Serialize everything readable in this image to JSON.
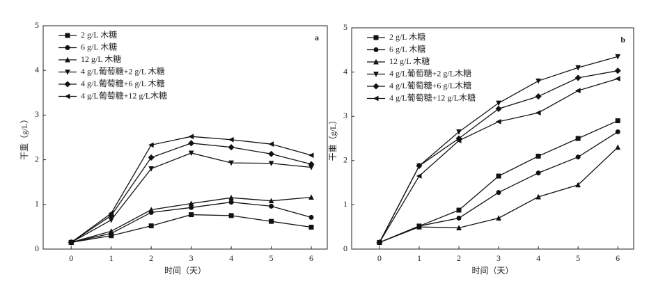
{
  "chart_data": [
    {
      "type": "line",
      "panel_label": "a",
      "x_label": "时间（天）",
      "y_label": "干重（g/L）",
      "x": [
        0,
        1,
        2,
        3,
        4,
        5,
        6
      ],
      "xlim": [
        -0.7,
        6.4
      ],
      "xticks": [
        0,
        1,
        2,
        3,
        4,
        5,
        6
      ],
      "ylim": [
        0,
        5
      ],
      "yticks": [
        0,
        1,
        2,
        3,
        4,
        5
      ],
      "legend": "upper left",
      "series": [
        {
          "name": "2 g/L 木糖",
          "color": "#111111",
          "marker": "square",
          "values": [
            0.15,
            0.3,
            0.52,
            0.77,
            0.75,
            0.62,
            0.49
          ]
        },
        {
          "name": "6 g/L 木糖",
          "color": "#111111",
          "marker": "circle",
          "values": [
            0.15,
            0.35,
            0.82,
            0.93,
            1.05,
            0.96,
            0.71
          ]
        },
        {
          "name": "12 g/L 木糖",
          "color": "#111111",
          "marker": "triangle-up",
          "values": [
            0.15,
            0.4,
            0.88,
            1.02,
            1.15,
            1.08,
            1.16
          ]
        },
        {
          "name": "4 g/L葡萄糖+2 g/L 木糖",
          "color": "#111111",
          "marker": "triangle-down",
          "values": [
            0.15,
            0.65,
            1.8,
            2.15,
            1.93,
            1.92,
            1.83
          ]
        },
        {
          "name": "4 g/L葡萄糖+6 g/L 木糖",
          "color": "#111111",
          "marker": "diamond",
          "values": [
            0.15,
            0.75,
            2.05,
            2.37,
            2.28,
            2.13,
            1.9
          ]
        },
        {
          "name": "4 g/L葡萄糖+12 g/L木糖",
          "color": "#111111",
          "marker": "triangle-left",
          "values": [
            0.15,
            0.8,
            2.33,
            2.52,
            2.45,
            2.35,
            2.1
          ]
        }
      ]
    },
    {
      "type": "line",
      "panel_label": "b",
      "x_label": "时间（天）",
      "y_label": "干重（g/L）",
      "x": [
        0,
        1,
        2,
        3,
        4,
        5,
        6
      ],
      "xlim": [
        -0.7,
        6.4
      ],
      "xticks": [
        0,
        1,
        2,
        3,
        4,
        5,
        6
      ],
      "ylim": [
        0,
        5
      ],
      "yticks": [
        0,
        1,
        2,
        3,
        4,
        5
      ],
      "legend": "upper left",
      "series": [
        {
          "name": "2 g/L 木糖",
          "color": "#111111",
          "marker": "square",
          "values": [
            0.15,
            0.52,
            0.88,
            1.65,
            2.1,
            2.5,
            2.9
          ]
        },
        {
          "name": "6 g/L 木糖",
          "color": "#111111",
          "marker": "circle",
          "values": [
            0.15,
            0.52,
            0.7,
            1.28,
            1.72,
            2.08,
            2.65
          ]
        },
        {
          "name": "12 g/L 木糖",
          "color": "#111111",
          "marker": "triangle-up",
          "values": [
            0.15,
            0.5,
            0.48,
            0.7,
            1.18,
            1.45,
            2.3
          ]
        },
        {
          "name": "4 g/L葡萄糖+2 g/L木糖",
          "color": "#111111",
          "marker": "triangle-down",
          "values": [
            0.15,
            1.88,
            2.65,
            3.3,
            3.8,
            4.1,
            4.35
          ]
        },
        {
          "name": "4 g/L葡萄糖+6 g/L木糖",
          "color": "#111111",
          "marker": "diamond",
          "values": [
            0.15,
            1.88,
            2.5,
            3.17,
            3.45,
            3.87,
            4.03
          ]
        },
        {
          "name": "4 g/L葡萄糖+12 g/L木糖",
          "color": "#111111",
          "marker": "triangle-left",
          "values": [
            0.15,
            1.65,
            2.45,
            2.88,
            3.08,
            3.58,
            3.85
          ]
        }
      ]
    }
  ]
}
